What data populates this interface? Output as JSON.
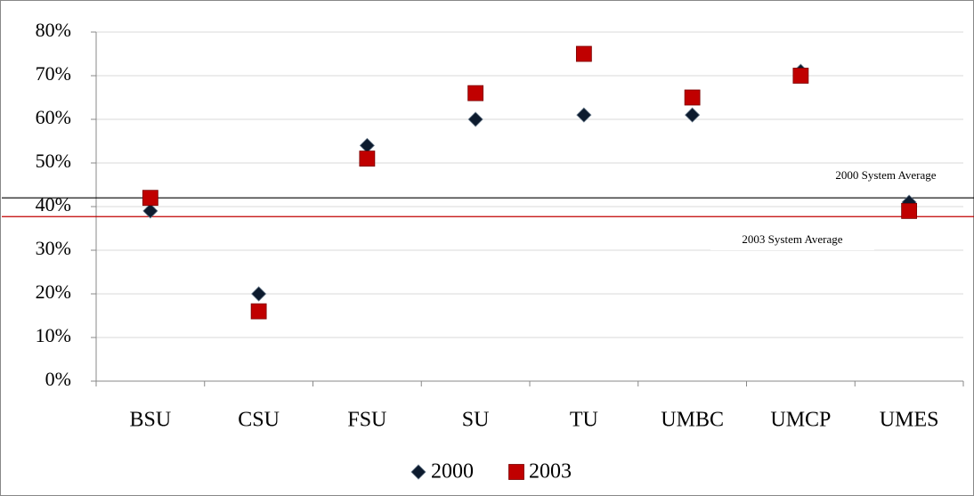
{
  "chart_data": {
    "type": "scatter",
    "categories": [
      "BSU",
      "CSU",
      "FSU",
      "SU",
      "TU",
      "UMBC",
      "UMCP",
      "UMES"
    ],
    "series": [
      {
        "name": "2000",
        "color": "#0d1b2e",
        "marker": "diamond",
        "values": [
          39,
          20,
          54,
          60,
          61,
          61,
          71,
          41
        ]
      },
      {
        "name": "2003",
        "color": "#c00000",
        "marker": "square",
        "values": [
          42,
          16,
          51,
          66,
          75,
          65,
          70,
          39
        ]
      }
    ],
    "reference_lines": [
      {
        "name": "2000 System Average",
        "value": 42,
        "color": "#000000"
      },
      {
        "name": "2003 System Average",
        "value": 37.7,
        "color": "#c00000"
      }
    ],
    "ylim": [
      0,
      80
    ],
    "yticks": [
      {
        "value": 0,
        "label": "0%"
      },
      {
        "value": 10,
        "label": "10%"
      },
      {
        "value": 20,
        "label": "20%"
      },
      {
        "value": 30,
        "label": "30%"
      },
      {
        "value": 40,
        "label": "40%"
      },
      {
        "value": 50,
        "label": "50%"
      },
      {
        "value": 60,
        "label": "60%"
      },
      {
        "value": 70,
        "label": "70%"
      },
      {
        "value": 80,
        "label": "80%"
      }
    ],
    "grid": true,
    "legend": "bottom"
  }
}
